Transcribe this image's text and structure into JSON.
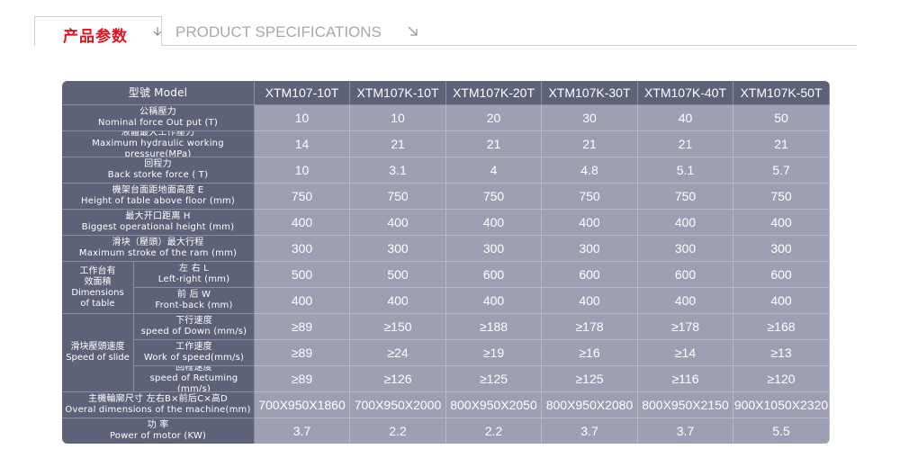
{
  "header": {
    "title_cn": "产品参数",
    "title_en": "PRODUCT SPECIFICATIONS"
  },
  "table": {
    "model_label": "型號 Model",
    "models": [
      "XTM107-10T",
      "XTM107K-10T",
      "XTM107K-20T",
      "XTM107K-30T",
      "XTM107K-40T",
      "XTM107K-50T"
    ],
    "rows": [
      {
        "cn": "公稱壓力",
        "en": "Nominal force  Out put (T)",
        "values": [
          "10",
          "10",
          "20",
          "30",
          "40",
          "50"
        ]
      },
      {
        "cn": "液體最大工作壓力",
        "en": "Maximum hydraulic working pressure(MPa)",
        "values": [
          "14",
          "21",
          "21",
          "21",
          "21",
          "21"
        ]
      },
      {
        "cn": "回程力",
        "en": "Back storke force ( T)",
        "values": [
          "10",
          "3.1",
          "4",
          "4.8",
          "5.1",
          "5.7"
        ]
      },
      {
        "cn": "機架台面距地面高度 E",
        "en": "Height of table above floor (mm)",
        "values": [
          "750",
          "750",
          "750",
          "750",
          "750",
          "750"
        ]
      },
      {
        "cn": "最大开口距离  H",
        "en": "Biggest operational height (mm)",
        "values": [
          "400",
          "400",
          "400",
          "400",
          "400",
          "400"
        ]
      },
      {
        "cn": "滑块（壓頭）最大行程",
        "en": "Maximum stroke of the ram (mm)",
        "values": [
          "300",
          "300",
          "300",
          "300",
          "300",
          "300"
        ]
      }
    ],
    "dimensions_group": {
      "label": "工作台有\n效面積\nDimensions\nof table",
      "rows": [
        {
          "cn": "左 右 L",
          "en": "Left-right (mm)",
          "values": [
            "500",
            "500",
            "600",
            "600",
            "600",
            "600"
          ]
        },
        {
          "cn": "前 后 W",
          "en": "Front-back (mm)",
          "values": [
            "400",
            "400",
            "400",
            "400",
            "400",
            "400"
          ]
        }
      ]
    },
    "speed_group": {
      "label": "滑块壓頭速度\nSpeed of slide",
      "rows": [
        {
          "cn": "下行速度",
          "en": "speed of Down (mm/s)",
          "values": [
            "≥89",
            "≥150",
            "≥188",
            "≥178",
            "≥178",
            "≥168"
          ]
        },
        {
          "cn": "工作速度",
          "en": "Work of speed(mm/s)",
          "values": [
            "≥89",
            "≥24",
            "≥19",
            "≥16",
            "≥14",
            "≥13"
          ]
        },
        {
          "cn": "回程速度",
          "en": "speed of Retuming (mm/s)",
          "values": [
            "≥89",
            "≥126",
            "≥125",
            "≥125",
            "≥116",
            "≥120"
          ]
        }
      ]
    },
    "tail_rows": [
      {
        "cn": "主機輪廓尺寸  左右B×前后C×高D",
        "en": "Overal dimensions of the machine(mm)",
        "values": [
          "700X950X1860",
          "700X950X2000",
          "800X950X2050",
          "800X950X2080",
          "800X950X2150",
          "900X1050X2320"
        ]
      },
      {
        "cn": "功 率",
        "en": "Power of motor (KW)",
        "values": [
          "3.7",
          "2.2",
          "2.2",
          "3.7",
          "3.7",
          "5.5"
        ]
      }
    ]
  }
}
